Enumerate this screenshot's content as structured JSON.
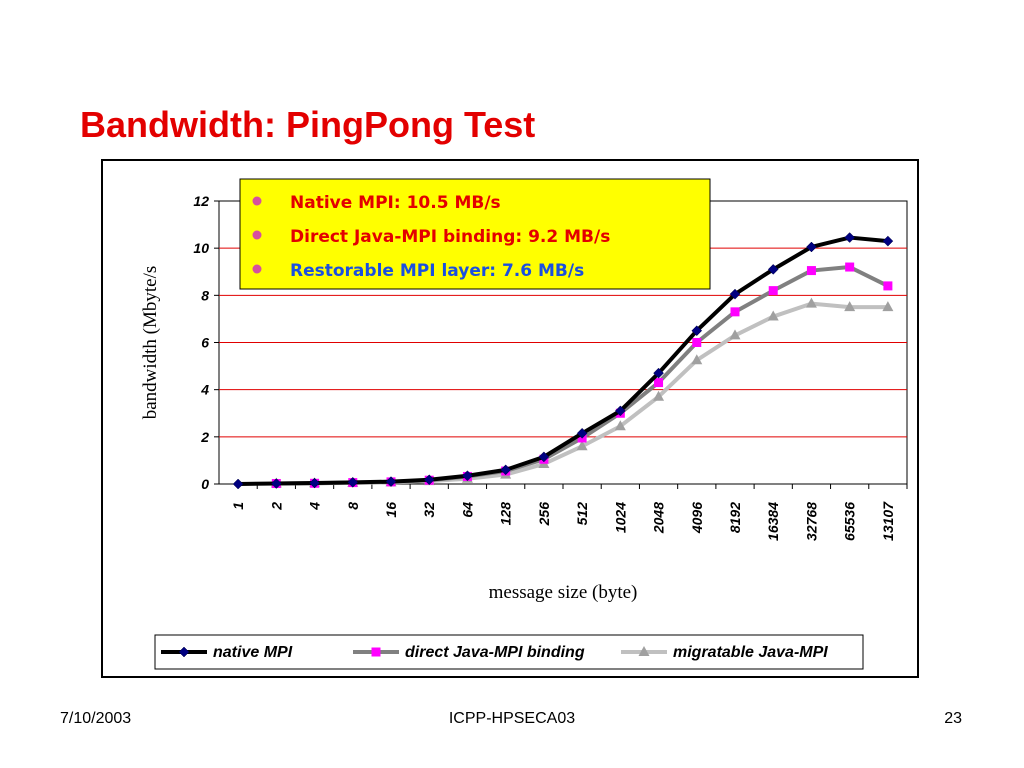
{
  "slide": {
    "title": "Bandwidth: PingPong Test",
    "footer_date": "7/10/2003",
    "footer_center": "ICPP-HPSECA03",
    "page_number": "23"
  },
  "callout": {
    "lines": [
      {
        "text": "Native MPI: 10.5 MB/s",
        "color": "#e30000"
      },
      {
        "text": "Direct Java-MPI binding: 9.2 MB/s",
        "color": "#e30000"
      },
      {
        "text": "Restorable MPI layer: 7.6 MB/s",
        "color": "#1a4fe0"
      }
    ],
    "background": "#ffff00",
    "bullet_color": "#d64fa0"
  },
  "chart_data": {
    "type": "line",
    "xlabel": "message size (byte)",
    "ylabel": "bandwidth (Mbyte/s",
    "ylim": [
      0,
      12
    ],
    "yticks": [
      0,
      2,
      4,
      6,
      8,
      10,
      12
    ],
    "grid": "horizontal red lines at 2, 4, 6, 8, 10",
    "grid_color": "#e00000",
    "legend_position": "bottom",
    "categories": [
      "1",
      "2",
      "4",
      "8",
      "16",
      "32",
      "64",
      "128",
      "256",
      "512",
      "1024",
      "2048",
      "4096",
      "8192",
      "16384",
      "32768",
      "65536",
      "13107"
    ],
    "series": [
      {
        "name": "native MPI",
        "line_color": "#000000",
        "marker": "diamond",
        "marker_color": "#000080",
        "values": [
          0,
          0.02,
          0.04,
          0.07,
          0.1,
          0.18,
          0.35,
          0.6,
          1.15,
          2.15,
          3.1,
          4.7,
          6.5,
          8.05,
          9.1,
          10.05,
          10.45,
          10.3
        ]
      },
      {
        "name": "direct Java-MPI binding",
        "line_color": "#808080",
        "marker": "square",
        "marker_color": "#ff00ff",
        "values": [
          null,
          0.02,
          0.03,
          0.06,
          0.09,
          0.16,
          0.32,
          0.55,
          1.05,
          1.95,
          3.0,
          4.3,
          6.0,
          7.3,
          8.2,
          9.05,
          9.2,
          8.4
        ]
      },
      {
        "name": "migratable Java-MPI",
        "line_color": "#c0c0c0",
        "marker": "triangle",
        "marker_color": "#a0a0a0",
        "values": [
          null,
          0.02,
          0.03,
          0.05,
          0.07,
          0.12,
          0.22,
          0.4,
          0.85,
          1.6,
          2.45,
          3.7,
          5.25,
          6.3,
          7.1,
          7.65,
          7.5,
          7.5
        ]
      }
    ]
  }
}
